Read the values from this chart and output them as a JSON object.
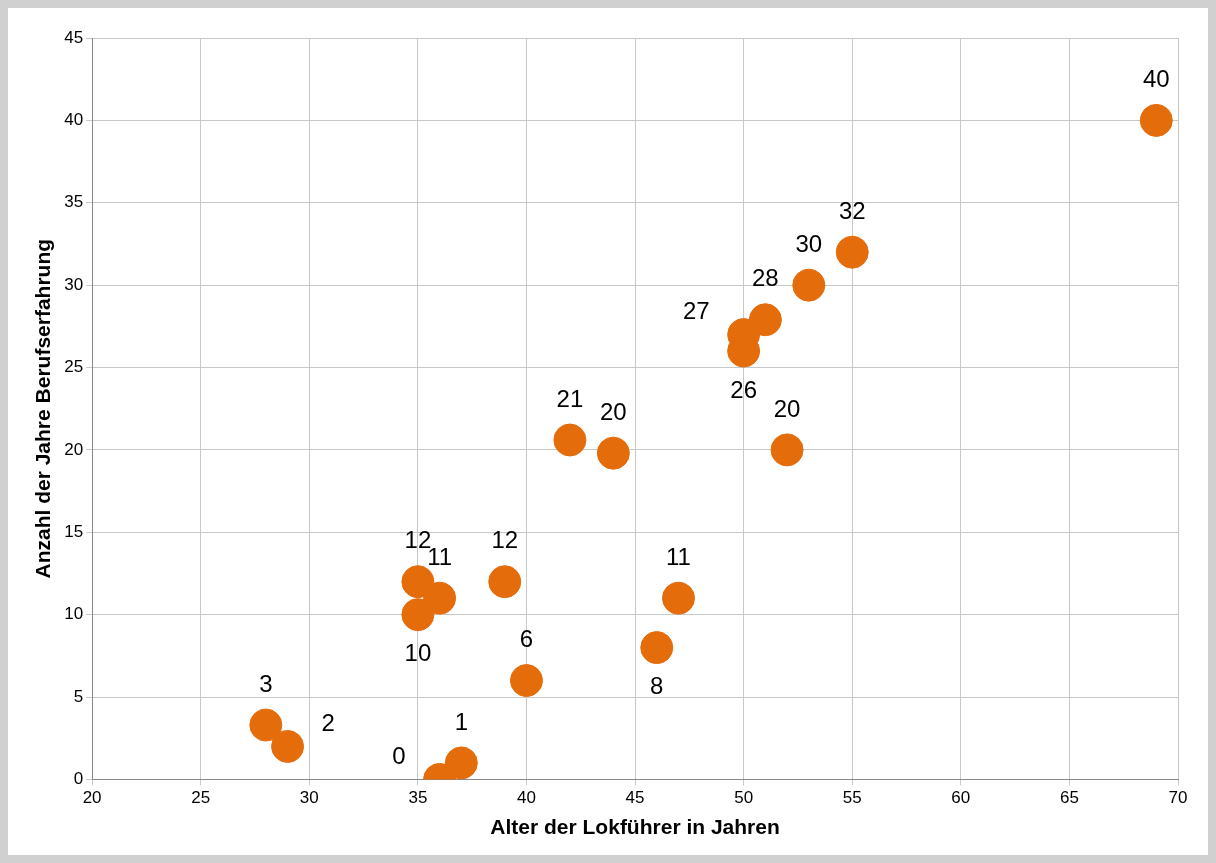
{
  "chart_data": {
    "type": "scatter",
    "xlabel": "Alter der Lokführer in Jahren",
    "ylabel": "Anzahl der Jahre Berufserfahrung",
    "x": [
      28,
      29,
      36,
      37,
      35,
      36,
      35,
      39,
      40,
      42,
      44,
      46,
      47,
      50,
      50,
      51,
      52,
      53,
      55,
      69
    ],
    "values": [
      3.3,
      2,
      0,
      1,
      12,
      11,
      10,
      12,
      6,
      20.6,
      19.8,
      8,
      11,
      27,
      26,
      27.9,
      20,
      30,
      32,
      40
    ],
    "value_labels": [
      "3",
      "2",
      "0",
      "1",
      "12",
      "11",
      "10",
      "12",
      "6",
      "21",
      "20",
      "8",
      "11",
      "27",
      "26",
      "28",
      "20",
      "30",
      "32",
      "40"
    ],
    "color": "#e46c0a",
    "marker": "circle",
    "xlim": [
      20,
      70
    ],
    "xticks": [
      20,
      25,
      30,
      35,
      40,
      45,
      50,
      55,
      60,
      65,
      70
    ],
    "ylim": [
      0,
      45
    ],
    "yticks": [
      0,
      5,
      10,
      15,
      20,
      25,
      30,
      35,
      40,
      45
    ],
    "grid": true,
    "legend": false
  }
}
